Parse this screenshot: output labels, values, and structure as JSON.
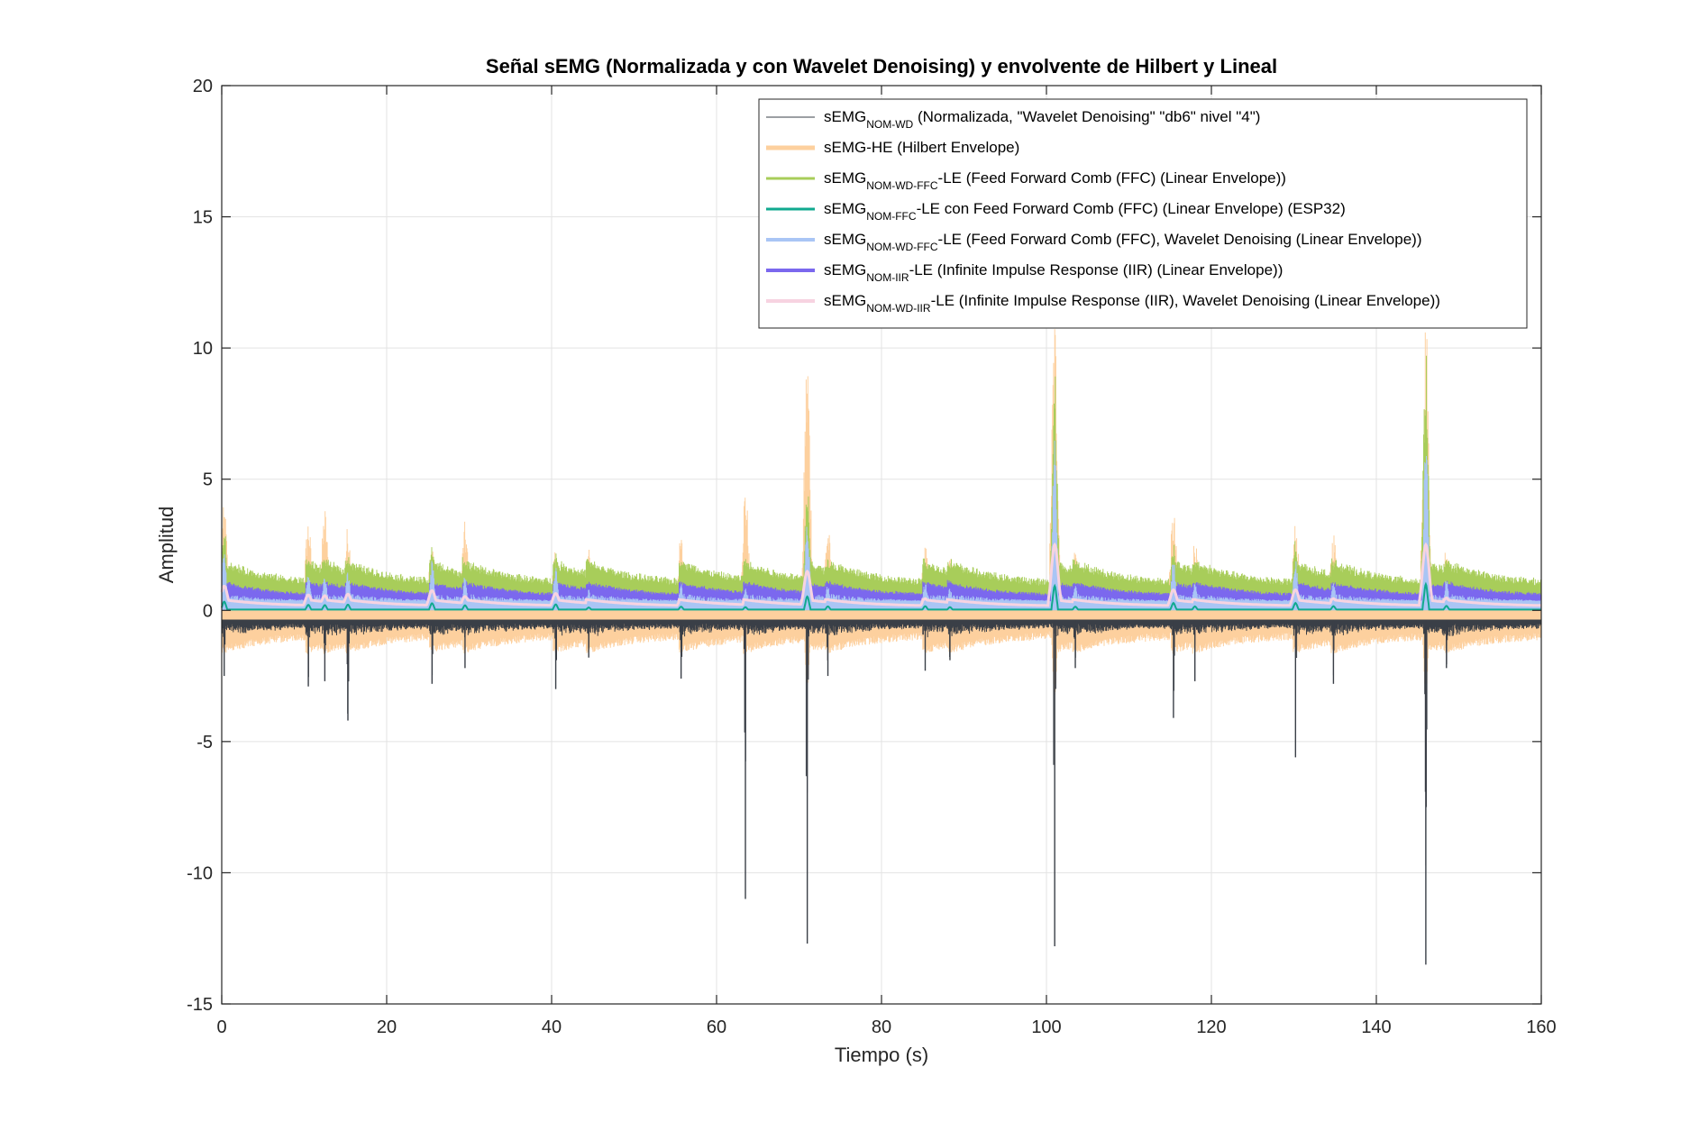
{
  "chart_data": {
    "type": "line",
    "title": "Señal sEMG (Normalizada y con Wavelet Denoising) y envolvente de Hilbert y Lineal",
    "xlabel": "Tiempo (s)",
    "ylabel": "Amplitud",
    "xlim": [
      0,
      160
    ],
    "ylim": [
      -15,
      20
    ],
    "xticks": [
      0,
      20,
      40,
      60,
      80,
      100,
      120,
      140,
      160
    ],
    "yticks": [
      -15,
      -10,
      -5,
      0,
      5,
      10,
      15,
      20
    ],
    "grid": true,
    "legend_position": "top-right",
    "bursts": [
      {
        "t": 0.3,
        "hilbert_peak": 4.1,
        "semg_min": -2.5,
        "ffc_peak": 3.3
      },
      {
        "t": 10.5,
        "hilbert_peak": 3.6,
        "semg_min": -2.9,
        "ffc_peak": 2.1
      },
      {
        "t": 12.5,
        "hilbert_peak": 4.0,
        "semg_min": -2.7,
        "ffc_peak": 2.0
      },
      {
        "t": 15.3,
        "hilbert_peak": 3.3,
        "semg_min": -4.2,
        "ffc_peak": 2.2
      },
      {
        "t": 25.5,
        "hilbert_peak": 2.7,
        "semg_min": -2.8,
        "ffc_peak": 2.7
      },
      {
        "t": 29.5,
        "hilbert_peak": 3.4,
        "semg_min": -2.2,
        "ffc_peak": 1.9
      },
      {
        "t": 40.5,
        "hilbert_peak": 2.5,
        "semg_min": -3.0,
        "ffc_peak": 2.3
      },
      {
        "t": 44.5,
        "hilbert_peak": 2.4,
        "semg_min": -1.8,
        "ffc_peak": 1.1
      },
      {
        "t": 55.7,
        "hilbert_peak": 2.9,
        "semg_min": -2.6,
        "ffc_peak": 1.4
      },
      {
        "t": 63.5,
        "hilbert_peak": 4.9,
        "semg_min": -11.0,
        "ffc_peak": 1.2
      },
      {
        "t": 71.0,
        "hilbert_peak": 10.2,
        "semg_min": -12.7,
        "ffc_peak": 5.3
      },
      {
        "t": 73.5,
        "hilbert_peak": 3.3,
        "semg_min": -2.5,
        "ffc_peak": 1.5
      },
      {
        "t": 85.3,
        "hilbert_peak": 2.5,
        "semg_min": -2.3,
        "ffc_peak": 1.6
      },
      {
        "t": 88.3,
        "hilbert_peak": 2.2,
        "semg_min": -1.9,
        "ffc_peak": 1.2
      },
      {
        "t": 101.0,
        "hilbert_peak": 11.5,
        "semg_min": -12.8,
        "ffc_peak": 9.3
      },
      {
        "t": 103.5,
        "hilbert_peak": 2.5,
        "semg_min": -2.2,
        "ffc_peak": 1.4
      },
      {
        "t": 115.4,
        "hilbert_peak": 3.9,
        "semg_min": -4.1,
        "ffc_peak": 2.8
      },
      {
        "t": 118.0,
        "hilbert_peak": 2.8,
        "semg_min": -2.7,
        "ffc_peak": 1.5
      },
      {
        "t": 130.2,
        "hilbert_peak": 3.4,
        "semg_min": -5.6,
        "ffc_peak": 2.8
      },
      {
        "t": 134.8,
        "hilbert_peak": 3.1,
        "semg_min": -2.8,
        "ffc_peak": 1.6
      },
      {
        "t": 146.0,
        "hilbert_peak": 11.5,
        "semg_min": -13.5,
        "ffc_peak": 10.0
      },
      {
        "t": 148.5,
        "hilbert_peak": 2.7,
        "semg_min": -2.2,
        "ffc_peak": 1.7
      }
    ],
    "series": [
      {
        "name": "sEMG",
        "sub": "NOM-WD",
        "rest": " (Normalizada, \"Wavelet Denoising\" \"db6\" nivel \"4\")",
        "color": "#3a3f47",
        "width": 1,
        "baseline": -0.5,
        "min": -13.5,
        "max": 0.1
      },
      {
        "name": "sEMG-HE (Hilbert Envelope)",
        "sub": "",
        "rest": "",
        "color": "#fdd09e",
        "width": 4,
        "baseline": -0.55,
        "min": -3.2,
        "max": 11.5
      },
      {
        "name": "sEMG",
        "sub": "NOM-WD-FFC",
        "rest": "-LE (Feed Forward Comb (FFC) (Linear Envelope))",
        "color": "#a8cd5a",
        "width": 2,
        "baseline": 1.1,
        "min": 0,
        "max": 10.0
      },
      {
        "name": "sEMG",
        "sub": "NOM-FFC",
        "rest": "-LE con Feed Forward Comb (FFC) (Linear Envelope) (ESP32)",
        "color": "#10a98f",
        "width": 2,
        "baseline": 0.03,
        "min": 0,
        "max": 1.0
      },
      {
        "name": "sEMG",
        "sub": "NOM-WD-FFC",
        "rest": "-LE (Feed Forward Comb (FFC), Wavelet Denoising (Linear Envelope))",
        "color": "#a9c5f5",
        "width": 3,
        "baseline": 0.35,
        "min": 0,
        "max": 7.0
      },
      {
        "name": "sEMG",
        "sub": "NOM-IIR",
        "rest": "-LE (Infinite Impulse Response (IIR) (Linear Envelope))",
        "color": "#7b68ee",
        "width": 3,
        "baseline": 0.6,
        "min": 0,
        "max": 3.0
      },
      {
        "name": "sEMG",
        "sub": "NOM-WD-IIR",
        "rest": "-LE (Infinite Impulse Response (IIR), Wavelet Denoising (Linear Envelope))",
        "color": "#f7d3e1",
        "width": 3,
        "baseline": 0.15,
        "min": 0,
        "max": 2.5
      }
    ]
  }
}
